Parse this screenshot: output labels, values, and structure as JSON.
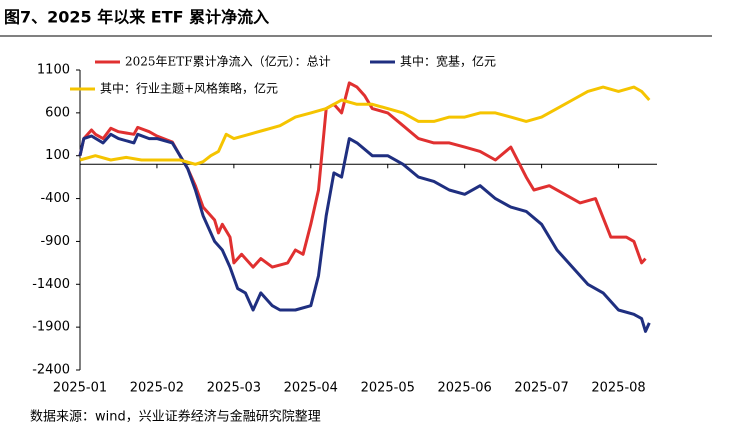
{
  "title": "图7、2025 年以来 ETF 累计净流入",
  "source": "数据来源：wind，兴业证券经济与金融研究院整理",
  "chart_data": {
    "type": "line",
    "xlim": [
      0,
      7.5
    ],
    "xticks": [
      {
        "value": 0,
        "label": "2025-01"
      },
      {
        "value": 1,
        "label": "2025-02"
      },
      {
        "value": 2,
        "label": "2025-03"
      },
      {
        "value": 3,
        "label": "2025-04"
      },
      {
        "value": 4,
        "label": "2025-05"
      },
      {
        "value": 5,
        "label": "2025-06"
      },
      {
        "value": 6,
        "label": "2025-07"
      },
      {
        "value": 7,
        "label": "2025-08"
      }
    ],
    "ylim": [
      -2400,
      1100
    ],
    "yticks": [
      1100,
      600,
      100,
      -400,
      -900,
      -1400,
      -1900,
      -2400
    ],
    "series": [
      {
        "name": "2025年ETF累计净流入（亿元）：总计",
        "color": "#e03030",
        "x": [
          0,
          0.05,
          0.15,
          0.2,
          0.3,
          0.4,
          0.5,
          0.7,
          0.75,
          0.9,
          1.0,
          1.2,
          1.3,
          1.4,
          1.5,
          1.6,
          1.75,
          1.8,
          1.85,
          1.95,
          2.0,
          2.1,
          2.25,
          2.35,
          2.5,
          2.7,
          2.8,
          2.9,
          3.0,
          3.1,
          3.2,
          3.3,
          3.4,
          3.5,
          3.6,
          3.7,
          3.8,
          4.0,
          4.2,
          4.4,
          4.6,
          4.8,
          5.0,
          5.2,
          5.4,
          5.6,
          5.8,
          5.9,
          6.1,
          6.3,
          6.5,
          6.7,
          6.9,
          7.1,
          7.2,
          7.3,
          7.35
        ],
        "values": [
          100,
          300,
          400,
          350,
          300,
          420,
          380,
          350,
          430,
          380,
          330,
          260,
          100,
          -50,
          -250,
          -500,
          -650,
          -800,
          -700,
          -850,
          -1150,
          -1050,
          -1200,
          -1100,
          -1200,
          -1150,
          -1000,
          -1050,
          -700,
          -300,
          650,
          700,
          600,
          950,
          900,
          800,
          650,
          600,
          450,
          300,
          250,
          250,
          200,
          150,
          50,
          200,
          -150,
          -300,
          -250,
          -350,
          -450,
          -400,
          -850,
          -850,
          -900,
          -1150,
          -1100
        ]
      },
      {
        "name": "其中：宽基，亿元",
        "color": "#1f2f80",
        "x": [
          0,
          0.05,
          0.15,
          0.3,
          0.4,
          0.5,
          0.7,
          0.75,
          0.9,
          1.0,
          1.2,
          1.3,
          1.4,
          1.5,
          1.6,
          1.75,
          1.85,
          1.95,
          2.05,
          2.15,
          2.25,
          2.35,
          2.5,
          2.6,
          2.8,
          3.0,
          3.1,
          3.2,
          3.3,
          3.4,
          3.5,
          3.6,
          3.8,
          4.0,
          4.2,
          4.4,
          4.6,
          4.8,
          5.0,
          5.2,
          5.4,
          5.6,
          5.8,
          6.0,
          6.2,
          6.4,
          6.6,
          6.8,
          7.0,
          7.2,
          7.3,
          7.35,
          7.4
        ],
        "values": [
          100,
          300,
          330,
          250,
          350,
          300,
          250,
          350,
          300,
          300,
          250,
          100,
          -50,
          -300,
          -600,
          -900,
          -1000,
          -1200,
          -1450,
          -1500,
          -1700,
          -1500,
          -1650,
          -1700,
          -1700,
          -1650,
          -1300,
          -600,
          -100,
          -150,
          300,
          250,
          100,
          100,
          0,
          -150,
          -200,
          -300,
          -350,
          -250,
          -400,
          -500,
          -550,
          -700,
          -1000,
          -1200,
          -1400,
          -1500,
          -1700,
          -1750,
          -1800,
          -1950,
          -1850
        ]
      },
      {
        "name": "其中：行业主题+风格策略，亿元",
        "color": "#f5c400",
        "x": [
          0,
          0.2,
          0.4,
          0.6,
          0.8,
          1.0,
          1.3,
          1.5,
          1.6,
          1.7,
          1.8,
          1.9,
          2.0,
          2.2,
          2.4,
          2.6,
          2.8,
          3.0,
          3.2,
          3.4,
          3.6,
          3.8,
          4.0,
          4.2,
          4.4,
          4.6,
          4.8,
          5.0,
          5.2,
          5.4,
          5.6,
          5.8,
          6.0,
          6.2,
          6.4,
          6.6,
          6.8,
          7.0,
          7.2,
          7.3,
          7.4
        ],
        "values": [
          50,
          100,
          50,
          80,
          50,
          50,
          50,
          0,
          30,
          100,
          150,
          350,
          300,
          350,
          400,
          450,
          550,
          600,
          650,
          750,
          700,
          700,
          650,
          600,
          500,
          500,
          550,
          550,
          600,
          600,
          550,
          500,
          550,
          650,
          750,
          850,
          900,
          850,
          900,
          850,
          750
        ]
      }
    ]
  }
}
